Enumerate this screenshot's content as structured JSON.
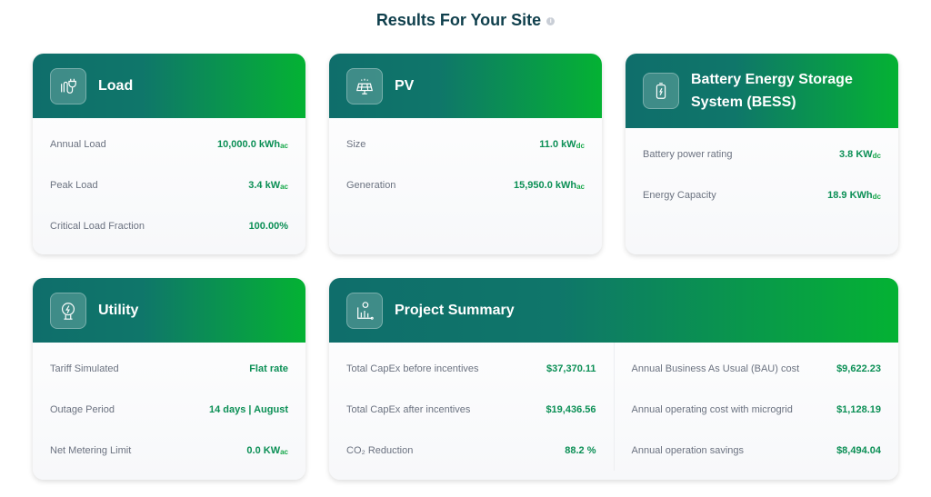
{
  "title": "Results For Your Site",
  "info_icon": "i",
  "colors": {
    "header_start": "#0f6e6b",
    "header_end": "#04b233",
    "value": "#0b8f55"
  },
  "load": {
    "title": "Load",
    "icon": "plug-icon",
    "rows": [
      {
        "label": "Annual Load",
        "value": "10,000.0 kWh",
        "unit": "ac"
      },
      {
        "label": "Peak Load",
        "value": "3.4 kW",
        "unit": "ac"
      },
      {
        "label": "Critical Load Fraction",
        "value": "100.00%",
        "unit": ""
      }
    ]
  },
  "pv": {
    "title": "PV",
    "icon": "solar-panel-icon",
    "rows": [
      {
        "label": "Size",
        "value": "11.0 kW",
        "unit": "dc"
      },
      {
        "label": "Generation",
        "value": "15,950.0 kWh",
        "unit": "ac"
      }
    ]
  },
  "bess": {
    "title": "Battery Energy Storage System (BESS)",
    "icon": "battery-icon",
    "rows": [
      {
        "label": "Battery power rating",
        "value": "3.8 KW",
        "unit": "dc"
      },
      {
        "label": "Energy Capacity",
        "value": "18.9 KWh",
        "unit": "dc"
      }
    ]
  },
  "utility": {
    "title": "Utility",
    "icon": "utility-power-icon",
    "rows": [
      {
        "label": "Tariff Simulated",
        "value": "Flat rate",
        "unit": ""
      },
      {
        "label": "Outage Period",
        "value": "14 days | August",
        "unit": ""
      },
      {
        "label": "Net Metering Limit",
        "value": "0.0 KW",
        "unit": "ac"
      }
    ]
  },
  "summary": {
    "title": "Project Summary",
    "icon": "financial-chart-icon",
    "left": [
      {
        "label": "Total CapEx before incentives",
        "value": "$37,370.11"
      },
      {
        "label": "Total CapEx after incentives",
        "value": "$19,436.56"
      },
      {
        "label": "CO₂ Reduction",
        "value": "88.2 %"
      }
    ],
    "right": [
      {
        "label": "Annual Business As Usual (BAU) cost",
        "value": "$9,622.23"
      },
      {
        "label": "Annual operating cost with microgrid",
        "value": "$1,128.19"
      },
      {
        "label": "Annual operation savings",
        "value": "$8,494.04"
      }
    ]
  }
}
